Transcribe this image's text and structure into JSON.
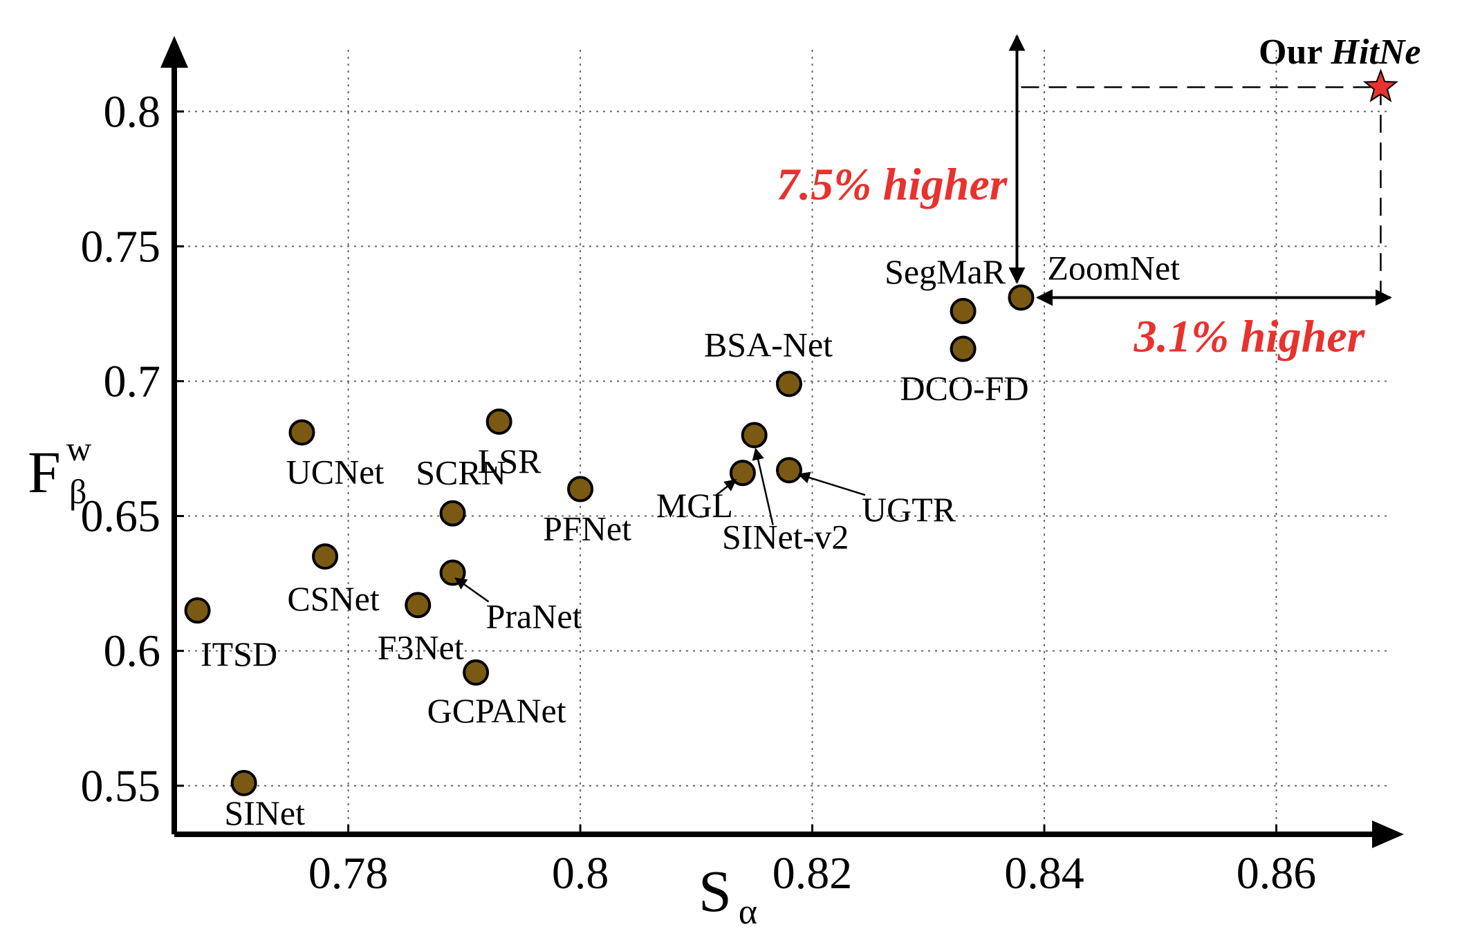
{
  "chart_data": {
    "type": "scatter",
    "title": "",
    "xlabel": "S",
    "xlabel_sub": "α",
    "ylabel": "F",
    "ylabel_sup": "w",
    "ylabel_sub": "β",
    "xlim": [
      0.765,
      0.871
    ],
    "ylim": [
      0.532,
      0.828
    ],
    "x_ticks": [
      0.78,
      0.8,
      0.82,
      0.84,
      0.86
    ],
    "x_tick_labels": [
      "0.78",
      "0.8",
      "0.82",
      "0.84",
      "0.86"
    ],
    "y_ticks": [
      0.55,
      0.6,
      0.65,
      0.7,
      0.75,
      0.8
    ],
    "y_tick_labels": [
      "0.55",
      "0.6",
      "0.65",
      "0.7",
      "0.75",
      "0.8"
    ],
    "grid": true,
    "marker_color": "#7a5a12",
    "star_color": "#e8322e",
    "annotation_color": "#e8322e",
    "points": [
      {
        "name": "SINet",
        "x": 0.771,
        "y": 0.551
      },
      {
        "name": "ITSD",
        "x": 0.767,
        "y": 0.615
      },
      {
        "name": "UCNet",
        "x": 0.776,
        "y": 0.681
      },
      {
        "name": "CSNet",
        "x": 0.778,
        "y": 0.635
      },
      {
        "name": "F3Net",
        "x": 0.786,
        "y": 0.617
      },
      {
        "name": "SCRN",
        "x": 0.789,
        "y": 0.651
      },
      {
        "name": "PraNet",
        "x": 0.789,
        "y": 0.629
      },
      {
        "name": "GCPANet",
        "x": 0.791,
        "y": 0.592
      },
      {
        "name": "LSR",
        "x": 0.793,
        "y": 0.685
      },
      {
        "name": "PFNet",
        "x": 0.8,
        "y": 0.66
      },
      {
        "name": "MGL",
        "x": 0.814,
        "y": 0.666
      },
      {
        "name": "SINet-v2",
        "x": 0.815,
        "y": 0.68
      },
      {
        "name": "UGTR",
        "x": 0.818,
        "y": 0.667
      },
      {
        "name": "BSA-Net",
        "x": 0.818,
        "y": 0.699
      },
      {
        "name": "SegMaR",
        "x": 0.833,
        "y": 0.726
      },
      {
        "name": "DCO-FD",
        "x": 0.833,
        "y": 0.712
      },
      {
        "name": "ZoomNet",
        "x": 0.838,
        "y": 0.731
      }
    ],
    "ours": {
      "name": "Our ",
      "name_italic": "HitNe",
      "x": 0.869,
      "y": 0.809
    },
    "annotations": [
      {
        "text": "7.5% higher"
      },
      {
        "text": "3.1% higher"
      }
    ]
  }
}
